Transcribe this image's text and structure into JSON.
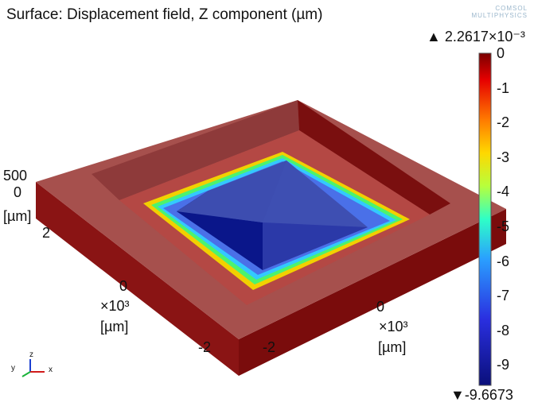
{
  "plot": {
    "title": "Surface: Displacement field, Z component (µm)"
  },
  "logo": {
    "line1": "COMSOL",
    "line2": "MULTIPHYSICS"
  },
  "axes": {
    "z_tick_500": "500",
    "z_tick_0": "0",
    "z_unit": "[µm]",
    "left_tick_2": "2",
    "left_tick_0": "0",
    "left_exp": "×10³",
    "left_unit": "[µm]",
    "left_tick_neg2": "-2",
    "right_tick_neg2": "-2",
    "right_tick_0": "0",
    "right_exp": "×10³",
    "right_unit": "[µm]"
  },
  "colorbar": {
    "max_label": "▲ 2.2617×10⁻³",
    "min_label": "▼-9.6673",
    "ticks": [
      "0",
      "-1",
      "-2",
      "-3",
      "-4",
      "-5",
      "-6",
      "-7",
      "-8",
      "-9"
    ]
  },
  "triad": {
    "x": "x",
    "y": "y",
    "z": "z"
  },
  "colors": {
    "frame_top": "#a64f4c",
    "frame_side": "#7e0e0e",
    "block_top": "#3e4fb2",
    "block_dark": "#0b1a8e"
  }
}
